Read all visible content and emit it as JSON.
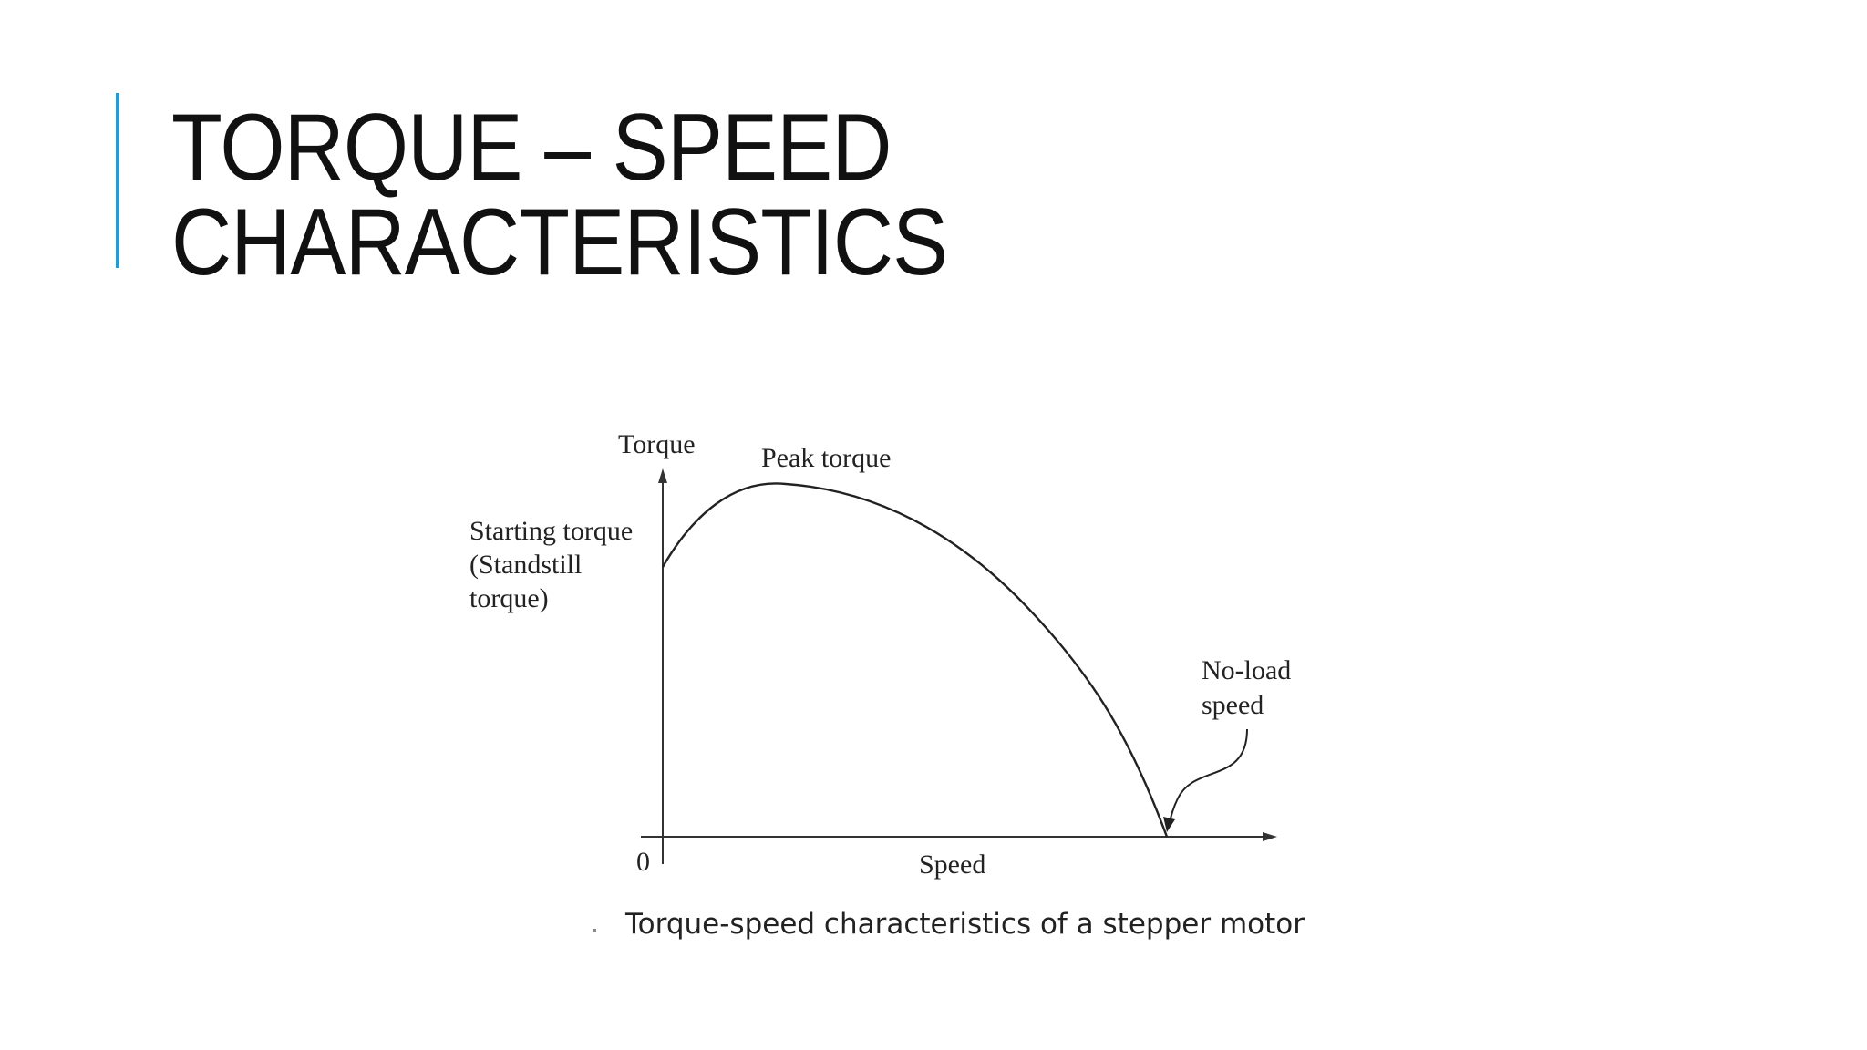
{
  "slide": {
    "title_line1": "TORQUE – SPEED",
    "title_line2": "CHARACTERISTICS",
    "accent_color": "#1f9bd6"
  },
  "figure": {
    "y_axis_label": "Torque",
    "x_axis_label": "Speed",
    "origin_label": "0",
    "peak_label": "Peak torque",
    "starting_label_line1": "Starting torque",
    "starting_label_line2": "(Standstill",
    "starting_label_line3": "torque)",
    "noload_label_line1": "No-load",
    "noload_label_line2": "speed",
    "caption": "Torque-speed characteristics of a stepper motor"
  }
}
